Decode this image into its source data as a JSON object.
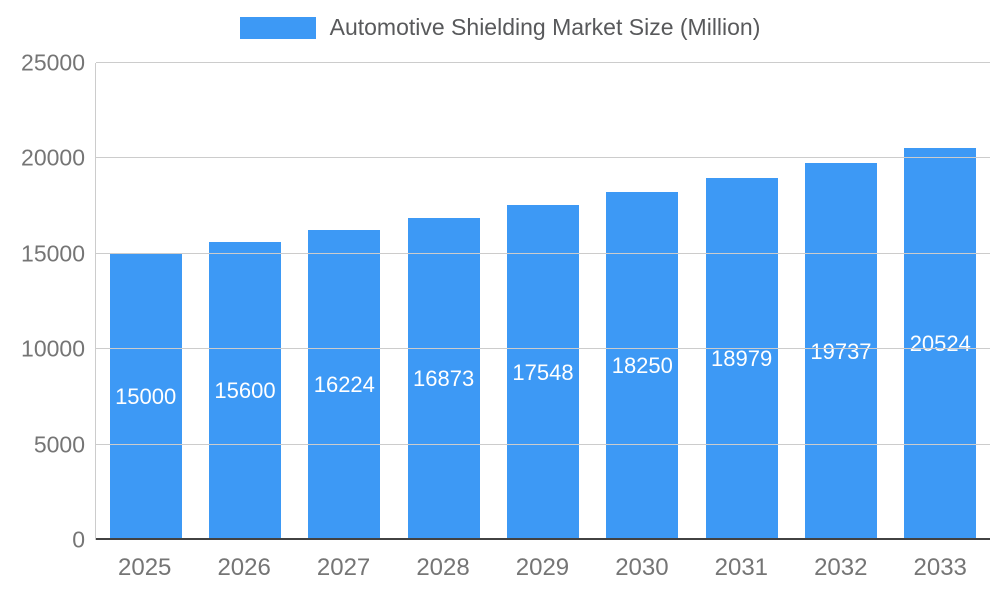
{
  "legend": {
    "label": "Automotive Shielding Market Size (Million)"
  },
  "colors": {
    "bar": "#3D99F5",
    "grid": "#cccccc",
    "baseline": "#424242",
    "tick_text": "#757575",
    "value_text": "#ffffff"
  },
  "chart_data": {
    "type": "bar",
    "title": "Automotive Shielding Market Size (Million)",
    "categories": [
      "2025",
      "2026",
      "2027",
      "2028",
      "2029",
      "2030",
      "2031",
      "2032",
      "2033"
    ],
    "values": [
      15000,
      15600,
      16224,
      16873,
      17548,
      18250,
      18979,
      19737,
      20524
    ],
    "xlabel": "",
    "ylabel": "",
    "ylim": [
      0,
      25000
    ],
    "yticks": [
      0,
      5000,
      10000,
      15000,
      20000,
      25000
    ],
    "grid": true,
    "legend_position": "top"
  }
}
